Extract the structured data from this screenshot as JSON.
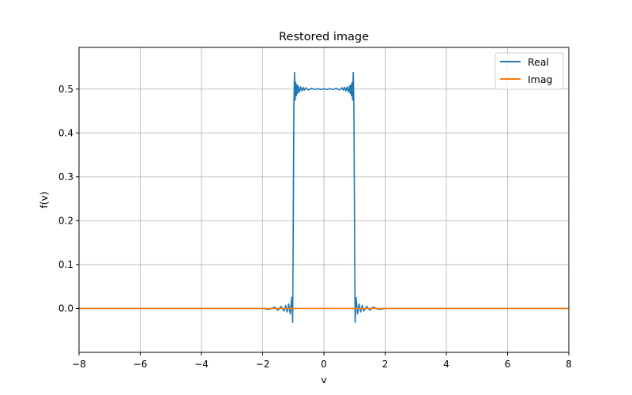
{
  "chart_data": {
    "type": "line",
    "title": "Restored image",
    "xlabel": "v",
    "ylabel": "f(v)",
    "xlim": [
      -8,
      8
    ],
    "ylim": [
      -0.1,
      0.595
    ],
    "xticks": [
      -8,
      -6,
      -4,
      -2,
      0,
      2,
      4,
      6,
      8
    ],
    "xtick_labels": [
      "−8",
      "−6",
      "−4",
      "−2",
      "0",
      "2",
      "4",
      "6",
      "8"
    ],
    "yticks": [
      0.0,
      0.1,
      0.2,
      0.3,
      0.4,
      0.5
    ],
    "ytick_labels": [
      "0.0",
      "0.1",
      "0.2",
      "0.3",
      "0.4",
      "0.5"
    ],
    "grid": true,
    "legend_position": "top-right",
    "series": [
      {
        "name": "Real",
        "color": "#1f77b4",
        "x": [
          -8,
          -2.0,
          -1.8,
          -1.6,
          -1.5,
          -1.4,
          -1.3,
          -1.25,
          -1.2,
          -1.15,
          -1.1,
          -1.05,
          -1.02,
          -1.0,
          -0.98,
          -0.96,
          -0.94,
          -0.92,
          -0.9,
          -0.88,
          -0.86,
          -0.84,
          -0.8,
          -0.76,
          -0.72,
          -0.68,
          -0.64,
          -0.6,
          -0.5,
          -0.4,
          -0.3,
          -0.2,
          -0.1,
          0,
          0.1,
          0.2,
          0.3,
          0.4,
          0.5,
          0.6,
          0.64,
          0.68,
          0.72,
          0.76,
          0.8,
          0.84,
          0.86,
          0.88,
          0.9,
          0.92,
          0.94,
          0.96,
          0.98,
          1.0,
          1.02,
          1.05,
          1.1,
          1.15,
          1.2,
          1.25,
          1.3,
          1.4,
          1.5,
          1.6,
          1.8,
          2.0,
          8
        ],
        "y": [
          0.0,
          0.0,
          -0.002,
          0.003,
          -0.004,
          0.005,
          -0.006,
          0.007,
          -0.008,
          0.01,
          -0.012,
          0.025,
          -0.032,
          0.2,
          0.46,
          0.538,
          0.475,
          0.515,
          0.485,
          0.51,
          0.49,
          0.507,
          0.493,
          0.505,
          0.496,
          0.504,
          0.497,
          0.503,
          0.498,
          0.502,
          0.499,
          0.501,
          0.499,
          0.501,
          0.499,
          0.501,
          0.499,
          0.502,
          0.498,
          0.503,
          0.497,
          0.504,
          0.496,
          0.505,
          0.493,
          0.507,
          0.49,
          0.51,
          0.485,
          0.515,
          0.475,
          0.538,
          0.46,
          0.2,
          -0.032,
          0.025,
          -0.012,
          0.01,
          -0.008,
          0.007,
          -0.006,
          0.005,
          -0.004,
          0.003,
          -0.002,
          0.0,
          0.0
        ]
      },
      {
        "name": "Imag",
        "color": "#ff7f0e",
        "x": [
          -8,
          8
        ],
        "y": [
          0.0,
          0.0
        ]
      }
    ]
  }
}
